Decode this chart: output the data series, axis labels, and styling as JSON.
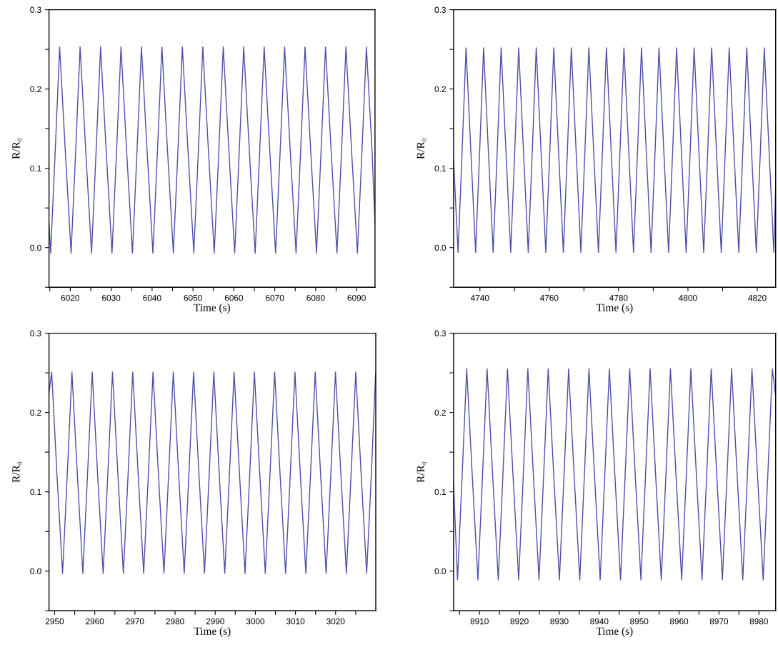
{
  "chart_data": [
    {
      "type": "line",
      "xlabel": "Time (s)",
      "ylabel": "R/R₀",
      "color": "#4b4ea8",
      "xlim": [
        6014.8,
        6094.5
      ],
      "ylim": [
        -0.05,
        0.3
      ],
      "xticks": [
        {
          "value": 6015,
          "label": null
        },
        6020,
        {
          "value": 6025,
          "label": null
        },
        6030,
        {
          "value": 6035,
          "label": null
        },
        6040,
        {
          "value": 6045,
          "label": null
        },
        6050,
        {
          "value": 6055,
          "label": null
        },
        6060,
        {
          "value": 6065,
          "label": null
        },
        6070,
        {
          "value": 6075,
          "label": null
        },
        6080,
        {
          "value": 6085,
          "label": null
        },
        6090
      ],
      "yticks": [
        {
          "value": -0.05,
          "label": null
        },
        {
          "value": 0,
          "label": "0.0"
        },
        {
          "value": 0.05,
          "label": null
        },
        0.1,
        {
          "value": 0.15,
          "label": null
        },
        0.2,
        {
          "value": 0.25,
          "label": null
        },
        0.3
      ],
      "x": [
        6014.8,
        6015.2,
        6016.3,
        6017.4,
        6018.8,
        6020.2,
        6021.3,
        6022.4,
        6023.8,
        6025.2,
        6026.3,
        6027.4,
        6028.8,
        6030.2,
        6031.3,
        6032.4,
        6033.8,
        6035.2,
        6036.3,
        6037.4,
        6038.8,
        6040.2,
        6041.3,
        6042.4,
        6043.8,
        6045.2,
        6046.3,
        6047.4,
        6048.8,
        6050.2,
        6051.3,
        6052.4,
        6053.8,
        6055.2,
        6056.3,
        6057.4,
        6058.8,
        6060.2,
        6061.3,
        6062.4,
        6063.8,
        6065.2,
        6066.3,
        6067.4,
        6068.8,
        6070.2,
        6071.3,
        6072.4,
        6073.8,
        6075.2,
        6076.3,
        6077.4,
        6078.8,
        6080.2,
        6081.3,
        6082.4,
        6083.8,
        6085.2,
        6086.3,
        6087.4,
        6088.8,
        6090.2,
        6091.3,
        6092.4,
        6093.8,
        6094.5
      ],
      "values": [
        0.03,
        -0.007,
        0.12,
        0.253,
        0.12,
        -0.007,
        0.12,
        0.253,
        0.12,
        -0.007,
        0.12,
        0.253,
        0.12,
        -0.007,
        0.12,
        0.253,
        0.12,
        -0.007,
        0.12,
        0.253,
        0.12,
        -0.007,
        0.12,
        0.253,
        0.12,
        -0.007,
        0.12,
        0.253,
        0.12,
        -0.007,
        0.12,
        0.253,
        0.12,
        -0.007,
        0.12,
        0.253,
        0.12,
        -0.007,
        0.12,
        0.253,
        0.12,
        -0.007,
        0.12,
        0.253,
        0.12,
        -0.007,
        0.12,
        0.253,
        0.12,
        -0.007,
        0.12,
        0.253,
        0.12,
        -0.007,
        0.12,
        0.253,
        0.12,
        -0.007,
        0.12,
        0.253,
        0.12,
        -0.007,
        0.12,
        0.253,
        0.12,
        0.03
      ]
    },
    {
      "type": "line",
      "xlabel": "Time (s)",
      "ylabel": "R/R₀",
      "color": "#4b4ea8",
      "xlim": [
        4732.4,
        4825.3
      ],
      "ylim": [
        -0.05,
        0.3
      ],
      "xticks": [
        4740,
        {
          "value": 4750,
          "label": null
        },
        4760,
        {
          "value": 4770,
          "label": null
        },
        4780,
        {
          "value": 4790,
          "label": null
        },
        4800,
        {
          "value": 4810,
          "label": null
        },
        4820
      ],
      "yticks": [
        {
          "value": -0.05,
          "label": null
        },
        {
          "value": 0,
          "label": "0.0"
        },
        {
          "value": 0.05,
          "label": null
        },
        0.1,
        {
          "value": 0.15,
          "label": null
        },
        0.2,
        {
          "value": 0.25,
          "label": null
        },
        0.3
      ],
      "x": [
        4732.4,
        4733.7,
        4734.85,
        4736.0,
        4737.4,
        4738.76,
        4739.91,
        4741.06,
        4742.46,
        4743.82,
        4744.97,
        4746.12,
        4747.52,
        4748.88,
        4750.03,
        4751.18,
        4752.58,
        4753.94,
        4755.09,
        4756.24,
        4757.64,
        4759.0,
        4760.15,
        4761.3,
        4762.7,
        4764.06,
        4765.21,
        4766.36,
        4767.76,
        4769.12,
        4770.27,
        4771.42,
        4772.82,
        4774.18,
        4775.33,
        4776.48,
        4777.88,
        4779.24,
        4780.39,
        4781.54,
        4782.94,
        4784.3,
        4785.45,
        4786.6,
        4788.0,
        4789.36,
        4790.51,
        4791.66,
        4793.06,
        4794.42,
        4795.57,
        4796.72,
        4798.12,
        4799.48,
        4800.63,
        4801.78,
        4803.18,
        4804.54,
        4805.69,
        4806.84,
        4808.24,
        4809.6,
        4810.75,
        4811.9,
        4813.3,
        4814.66,
        4815.81,
        4816.96,
        4818.36,
        4819.72,
        4820.87,
        4822.02,
        4823.42,
        4824.78,
        4825.3
      ],
      "values": [
        0.11,
        -0.006,
        0.12,
        0.252,
        0.12,
        -0.006,
        0.12,
        0.252,
        0.12,
        -0.006,
        0.12,
        0.252,
        0.12,
        -0.006,
        0.12,
        0.252,
        0.12,
        -0.006,
        0.12,
        0.252,
        0.12,
        -0.006,
        0.12,
        0.252,
        0.12,
        -0.006,
        0.12,
        0.252,
        0.12,
        -0.006,
        0.12,
        0.252,
        0.12,
        -0.006,
        0.12,
        0.252,
        0.12,
        -0.006,
        0.12,
        0.252,
        0.12,
        -0.006,
        0.12,
        0.252,
        0.12,
        -0.006,
        0.12,
        0.252,
        0.12,
        -0.006,
        0.12,
        0.252,
        0.12,
        -0.006,
        0.12,
        0.252,
        0.12,
        -0.006,
        0.12,
        0.252,
        0.12,
        -0.006,
        0.12,
        0.252,
        0.12,
        -0.006,
        0.12,
        0.252,
        0.12,
        -0.006,
        0.12,
        0.252,
        0.12,
        -0.006,
        0.08
      ]
    },
    {
      "type": "line",
      "xlabel": "Time (s)",
      "ylabel": "R/R₀",
      "color": "#4b4ea8",
      "xlim": [
        2948.6,
        3030.0
      ],
      "ylim": [
        -0.05,
        0.3
      ],
      "xticks": [
        2950,
        {
          "value": 2955,
          "label": null
        },
        2960,
        {
          "value": 2965,
          "label": null
        },
        2970,
        {
          "value": 2975,
          "label": null
        },
        2980,
        {
          "value": 2985,
          "label": null
        },
        2990,
        {
          "value": 2995,
          "label": null
        },
        3000,
        {
          "value": 3005,
          "label": null
        },
        3010,
        {
          "value": 3015,
          "label": null
        },
        3020,
        {
          "value": 3025,
          "label": null
        }
      ],
      "yticks": [
        {
          "value": -0.05,
          "label": null
        },
        {
          "value": 0,
          "label": "0.0"
        },
        {
          "value": 0.05,
          "label": null
        },
        0.1,
        {
          "value": 0.15,
          "label": null
        },
        0.2,
        {
          "value": 0.25,
          "label": null
        },
        0.3
      ],
      "x": [
        2948.6,
        2949.26,
        2950.6,
        2951.98,
        2953.13,
        2954.31,
        2955.68,
        2957.03,
        2958.18,
        2959.36,
        2960.73,
        2962.08,
        2963.23,
        2964.41,
        2965.78,
        2967.13,
        2968.28,
        2969.46,
        2970.83,
        2972.18,
        2973.33,
        2974.51,
        2975.88,
        2977.23,
        2978.38,
        2979.56,
        2980.93,
        2982.28,
        2983.43,
        2984.61,
        2985.98,
        2987.33,
        2988.48,
        2989.66,
        2991.03,
        2992.38,
        2993.53,
        2994.71,
        2996.08,
        2997.43,
        2998.58,
        2999.76,
        3001.13,
        3002.48,
        3003.63,
        3004.81,
        3006.18,
        3007.53,
        3008.68,
        3009.86,
        3011.23,
        3012.58,
        3013.73,
        3014.91,
        3016.28,
        3017.63,
        3018.78,
        3019.96,
        3021.33,
        3022.68,
        3023.83,
        3025.01,
        3026.38,
        3027.73,
        3028.88,
        3029.96
      ],
      "values": [
        0.225,
        0.251,
        0.12,
        -0.003,
        0.12,
        0.251,
        0.12,
        -0.003,
        0.12,
        0.251,
        0.12,
        -0.003,
        0.12,
        0.251,
        0.12,
        -0.003,
        0.12,
        0.251,
        0.12,
        -0.003,
        0.12,
        0.251,
        0.12,
        -0.003,
        0.12,
        0.251,
        0.12,
        -0.003,
        0.12,
        0.251,
        0.12,
        -0.003,
        0.12,
        0.251,
        0.12,
        -0.003,
        0.12,
        0.251,
        0.12,
        -0.003,
        0.12,
        0.251,
        0.12,
        -0.003,
        0.12,
        0.251,
        0.12,
        -0.003,
        0.12,
        0.251,
        0.12,
        -0.003,
        0.12,
        0.251,
        0.12,
        -0.003,
        0.12,
        0.251,
        0.12,
        -0.003,
        0.12,
        0.251,
        0.12,
        -0.003,
        0.12,
        0.25
      ]
    },
    {
      "type": "line",
      "xlabel": "Time (s)",
      "ylabel": "R/R₀",
      "color": "#4b4ea8",
      "xlim": [
        8903.5,
        8984.2
      ],
      "ylim": [
        -0.05,
        0.3
      ],
      "xticks": [
        {
          "value": 8905,
          "label": null
        },
        8910,
        {
          "value": 8915,
          "label": null
        },
        8920,
        {
          "value": 8925,
          "label": null
        },
        8930,
        {
          "value": 8935,
          "label": null
        },
        8940,
        {
          "value": 8945,
          "label": null
        },
        8950,
        {
          "value": 8955,
          "label": null
        },
        8960,
        {
          "value": 8965,
          "label": null
        },
        8970,
        {
          "value": 8975,
          "label": null
        },
        8980
      ],
      "yticks": [
        {
          "value": -0.05,
          "label": null
        },
        {
          "value": 0,
          "label": "0.0"
        },
        {
          "value": 0.05,
          "label": null
        },
        0.1,
        {
          "value": 0.15,
          "label": null
        },
        0.2,
        {
          "value": 0.25,
          "label": null
        },
        0.3
      ],
      "x": [
        8903.5,
        8904.49,
        8905.64,
        8906.79,
        8908.19,
        8909.6,
        8910.75,
        8911.9,
        8913.3,
        8914.7,
        8915.85,
        8917.0,
        8918.4,
        8919.81,
        8920.96,
        8922.11,
        8923.51,
        8924.91,
        8926.06,
        8927.21,
        8928.61,
        8930.02,
        8931.17,
        8932.32,
        8933.72,
        8935.12,
        8936.27,
        8937.42,
        8938.82,
        8940.23,
        8941.38,
        8942.53,
        8943.93,
        8945.33,
        8946.48,
        8947.63,
        8949.03,
        8950.44,
        8951.59,
        8952.74,
        8954.14,
        8955.54,
        8956.69,
        8957.84,
        8959.24,
        8960.65,
        8961.8,
        8962.95,
        8964.35,
        8965.75,
        8966.9,
        8968.05,
        8969.45,
        8970.86,
        8972.01,
        8973.16,
        8974.56,
        8975.96,
        8977.11,
        8978.26,
        8979.66,
        8981.07,
        8982.22,
        8983.37,
        8984.2
      ],
      "values": [
        0.11,
        -0.011,
        0.12,
        0.255,
        0.12,
        -0.011,
        0.12,
        0.255,
        0.12,
        -0.011,
        0.12,
        0.255,
        0.12,
        -0.011,
        0.12,
        0.255,
        0.12,
        -0.011,
        0.12,
        0.255,
        0.12,
        -0.011,
        0.12,
        0.255,
        0.12,
        -0.011,
        0.12,
        0.255,
        0.12,
        -0.011,
        0.12,
        0.255,
        0.12,
        -0.011,
        0.12,
        0.255,
        0.12,
        -0.011,
        0.12,
        0.255,
        0.12,
        -0.011,
        0.12,
        0.255,
        0.12,
        -0.011,
        0.12,
        0.255,
        0.12,
        -0.011,
        0.12,
        0.255,
        0.12,
        -0.011,
        0.12,
        0.255,
        0.12,
        -0.011,
        0.12,
        0.255,
        0.12,
        -0.011,
        0.12,
        0.255,
        0.22
      ]
    }
  ]
}
